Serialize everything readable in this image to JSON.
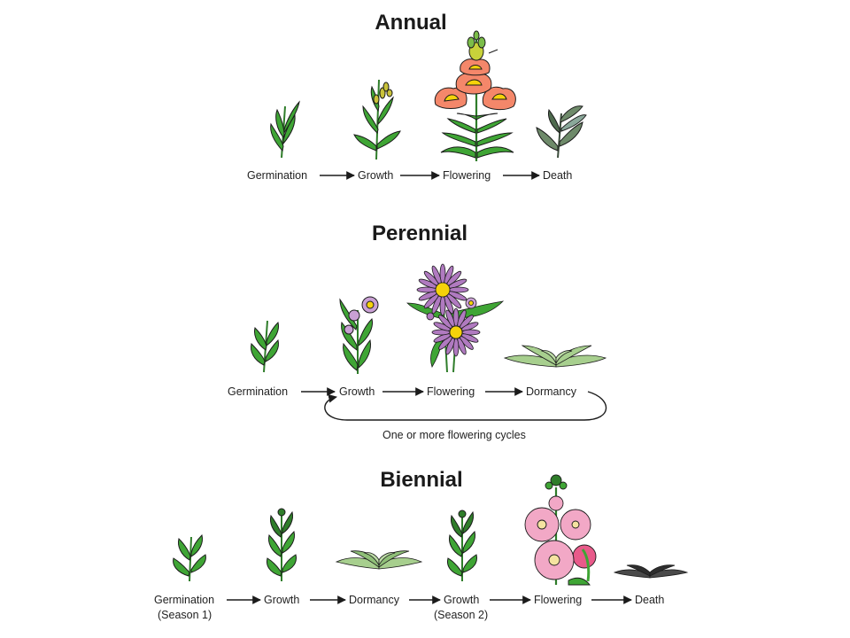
{
  "annual": {
    "title": "Annual",
    "stages": [
      "Germination",
      "Growth",
      "Flowering",
      "Death"
    ]
  },
  "perennial": {
    "title": "Perennial",
    "stages": [
      "Germination",
      "Growth",
      "Flowering",
      "Dormancy"
    ],
    "cycle_label": "One or more flowering cycles"
  },
  "biennial": {
    "title": "Biennial",
    "stages": [
      "Germination",
      "Growth",
      "Dormancy",
      "Growth",
      "Flowering",
      "Death"
    ],
    "season1": "(Season 1)",
    "season2": "(Season 2)"
  },
  "colors": {
    "leaf": "#3fa535",
    "leaf_dark": "#2f7d2a",
    "annual_flower": "#f4876a",
    "annual_flower_yellow": "#f5d20a",
    "aster_petal": "#b07ac0",
    "hollyhock": "#f2a8c6",
    "foliage_pale": "#a7cf8e",
    "dead": "#6e8a6a",
    "outline": "#1b1b1b"
  }
}
